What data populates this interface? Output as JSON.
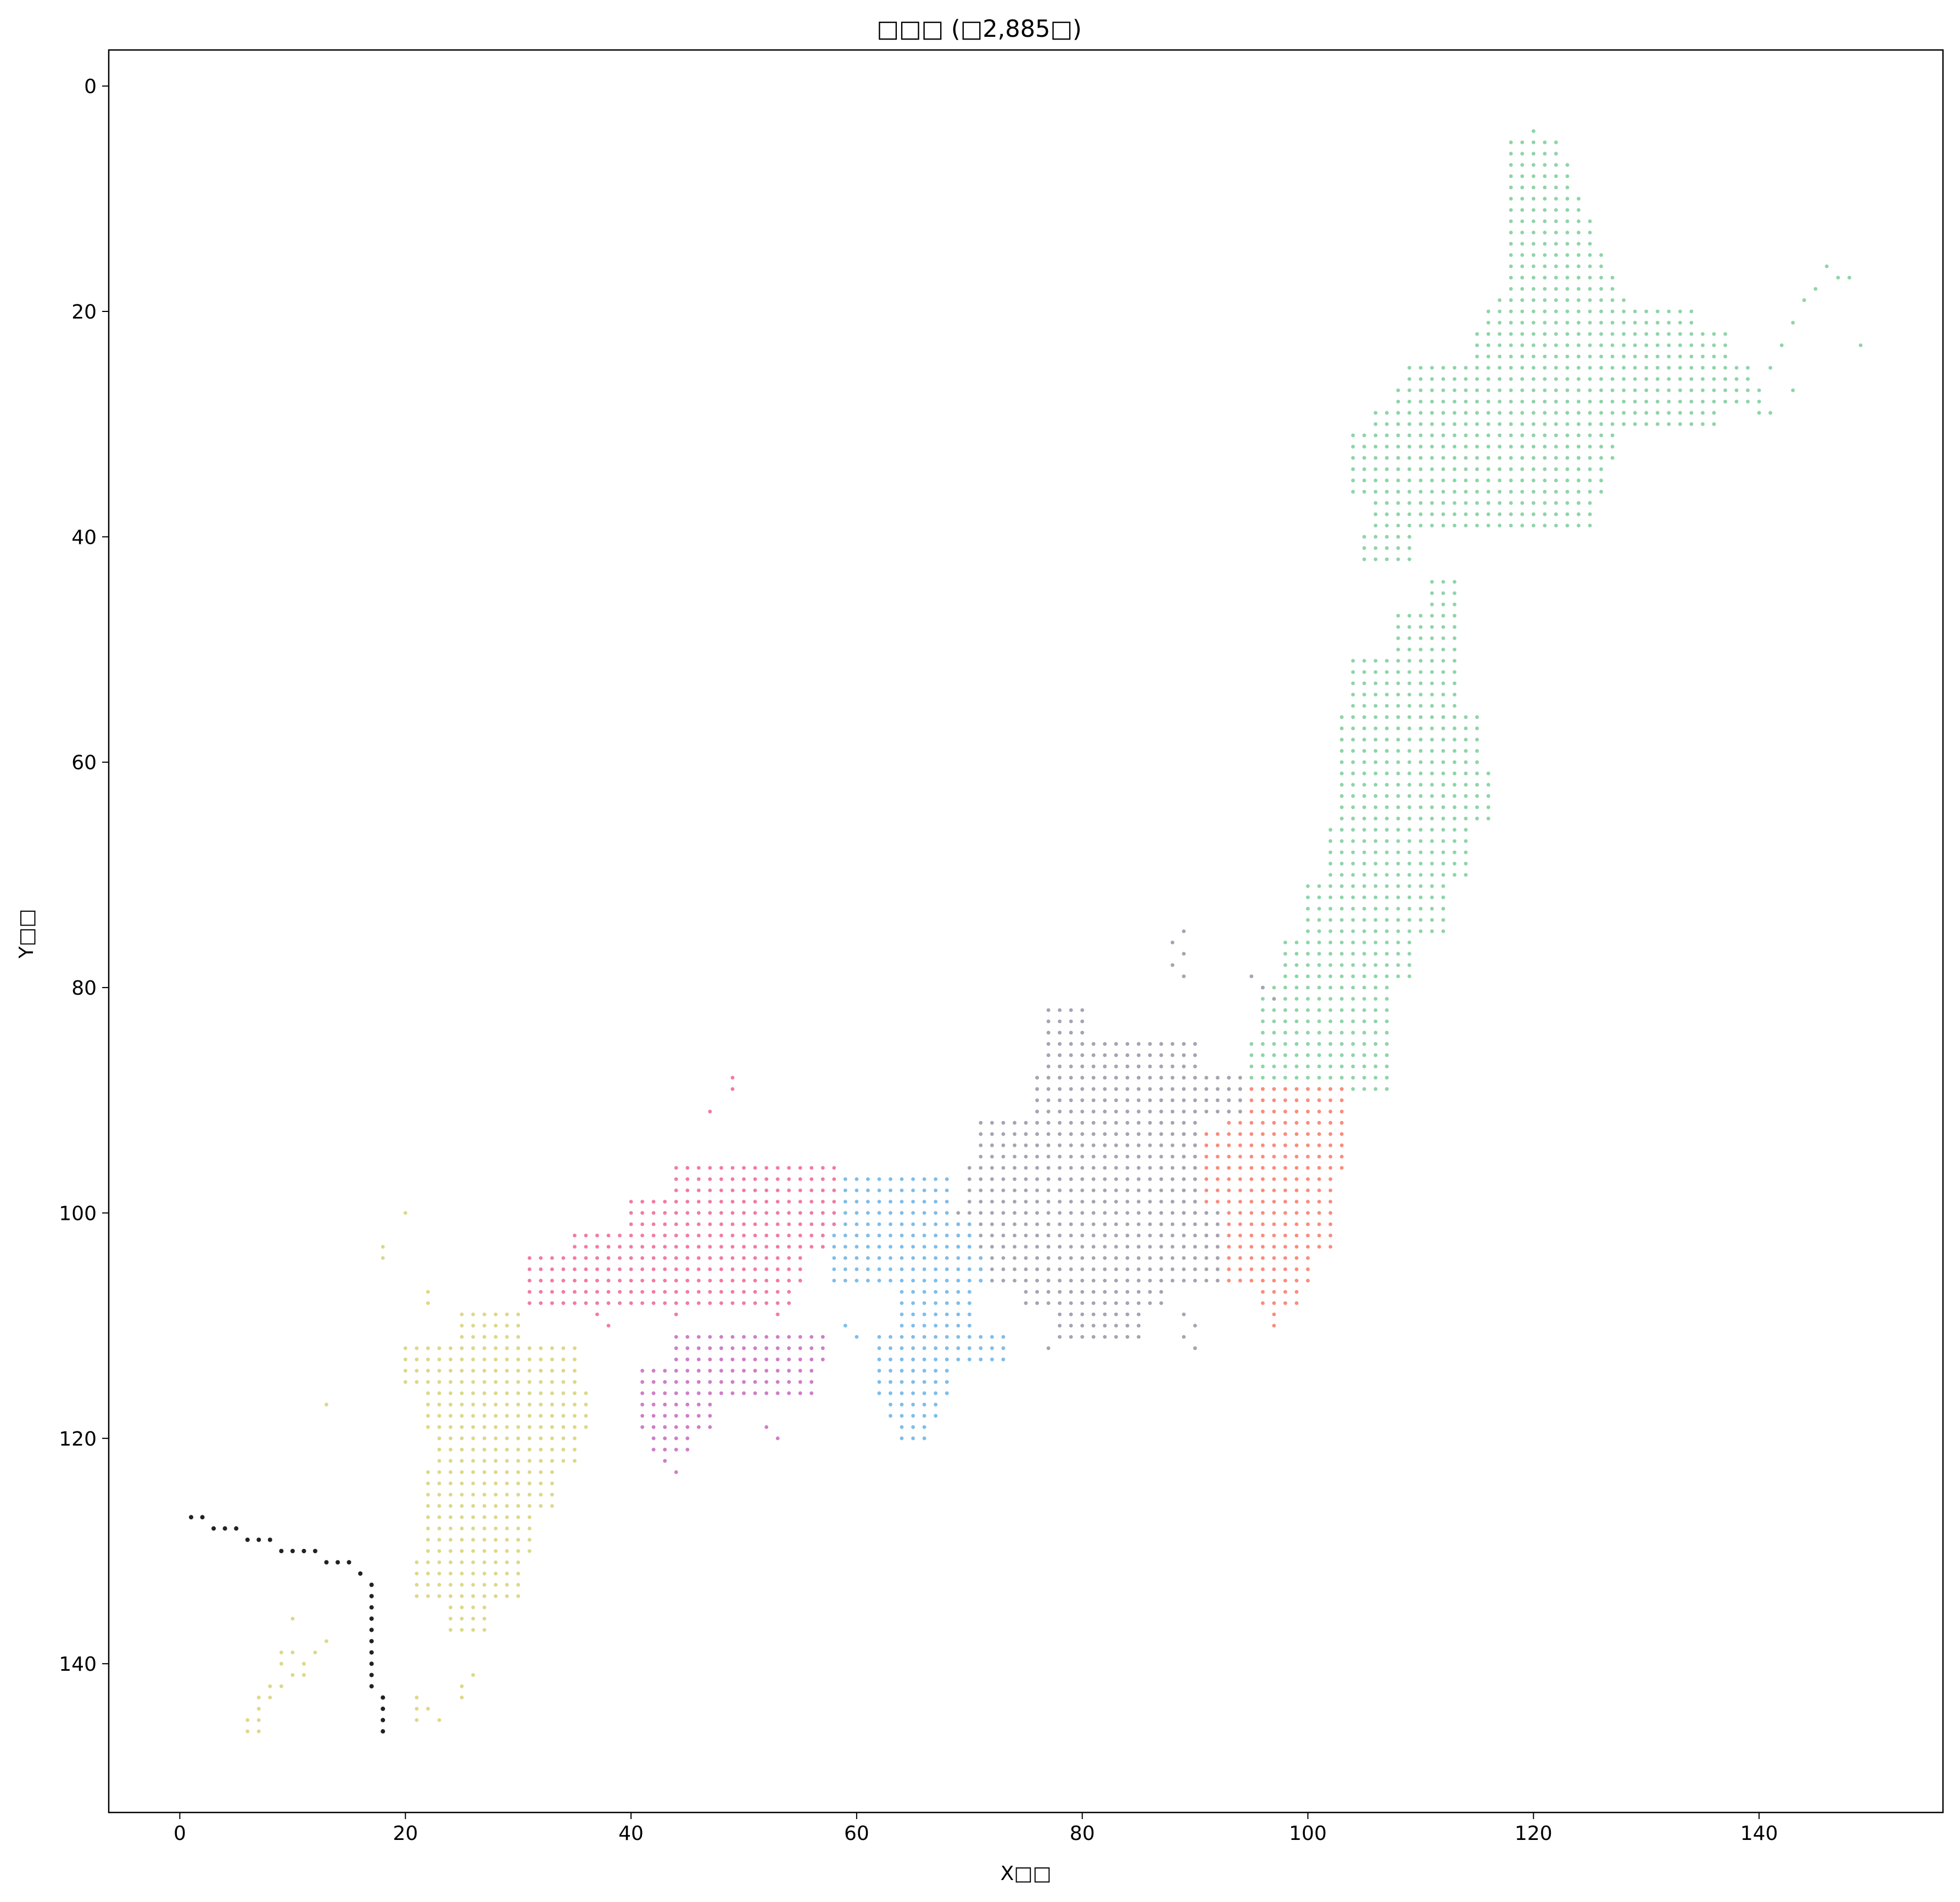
{
  "chart_data": {
    "type": "scatter",
    "title": "□□□ (□2,885□)",
    "xlabel": "X□□",
    "ylabel": "Y□□",
    "xlim": [
      -6.3,
      156.3
    ],
    "ylim": [
      153.2,
      -3.2
    ],
    "y_inverted": true,
    "xticks": [
      0,
      20,
      40,
      60,
      80,
      100,
      120,
      140
    ],
    "yticks": [
      0,
      20,
      40,
      60,
      80,
      100,
      120,
      140
    ],
    "grid": false,
    "legend": "none",
    "marker": "small dots on an integer grid",
    "colors": {
      "hokkaido_tohoku": "#8fd4a8",
      "kanto": "#fa8c7c",
      "chubu": "#a4a4b2",
      "kinki": "#7fbdea",
      "chugoku": "#f27ba4",
      "shikoku": "#cf7ec8",
      "kyushu": "#dcd88a",
      "boundary_line": "#222222"
    },
    "series": [
      {
        "color": "#8fd4a8",
        "regions": [
          {
            "y0": 4,
            "y1": 4,
            "x0": 120,
            "x1": 120
          },
          {
            "y0": 5,
            "y1": 6,
            "x0": 118,
            "x1": 122
          },
          {
            "y0": 7,
            "y1": 9,
            "x0": 118,
            "x1": 123
          },
          {
            "y0": 10,
            "y1": 11,
            "x0": 118,
            "x1": 124
          },
          {
            "y0": 12,
            "y1": 14,
            "x0": 118,
            "x1": 125
          },
          {
            "y0": 15,
            "y1": 16,
            "x0": 118,
            "x1": 126
          },
          {
            "y0": 17,
            "y1": 18,
            "x0": 118,
            "x1": 127
          },
          {
            "y0": 19,
            "y1": 19,
            "x0": 117,
            "x1": 128
          },
          {
            "y0": 20,
            "y1": 21,
            "x0": 116,
            "x1": 134
          },
          {
            "y0": 22,
            "y1": 24,
            "x0": 115,
            "x1": 137
          },
          {
            "y0": 25,
            "y1": 26,
            "x0": 109,
            "x1": 139
          },
          {
            "y0": 27,
            "y1": 28,
            "x0": 108,
            "x1": 140
          },
          {
            "y0": 29,
            "y1": 30,
            "x0": 106,
            "x1": 136
          },
          {
            "y0": 31,
            "y1": 33,
            "x0": 104,
            "x1": 127
          },
          {
            "y0": 34,
            "y1": 36,
            "x0": 104,
            "x1": 126
          },
          {
            "y0": 37,
            "y1": 39,
            "x0": 106,
            "x1": 125
          },
          {
            "y0": 40,
            "y1": 42,
            "x0": 105,
            "x1": 109
          },
          {
            "y0": 44,
            "y1": 46,
            "x0": 111,
            "x1": 113
          },
          {
            "y0": 47,
            "y1": 50,
            "x0": 108,
            "x1": 113
          },
          {
            "y0": 51,
            "y1": 55,
            "x0": 104,
            "x1": 113
          },
          {
            "y0": 56,
            "y1": 60,
            "x0": 103,
            "x1": 115
          },
          {
            "y0": 61,
            "y1": 65,
            "x0": 103,
            "x1": 116
          },
          {
            "y0": 66,
            "y1": 70,
            "x0": 102,
            "x1": 114
          },
          {
            "y0": 71,
            "y1": 75,
            "x0": 100,
            "x1": 112
          },
          {
            "y0": 76,
            "y1": 79,
            "x0": 98,
            "x1": 109
          },
          {
            "y0": 80,
            "y1": 84,
            "x0": 96,
            "x1": 107
          },
          {
            "y0": 85,
            "y1": 89,
            "x0": 95,
            "x1": 107
          }
        ],
        "extra_points": [
          [
            146,
            16
          ],
          [
            147,
            17
          ],
          [
            148,
            17
          ],
          [
            149,
            23
          ],
          [
            145,
            18
          ],
          [
            144,
            19
          ],
          [
            143,
            21
          ],
          [
            142,
            23
          ],
          [
            141,
            25
          ],
          [
            143,
            27
          ],
          [
            141,
            29
          ],
          [
            140,
            29
          ]
        ]
      },
      {
        "color": "#fa8c7c",
        "regions": [
          {
            "y0": 89,
            "y1": 92,
            "x0": 93,
            "x1": 103
          },
          {
            "y0": 93,
            "y1": 96,
            "x0": 89,
            "x1": 103
          },
          {
            "y0": 97,
            "y1": 100,
            "x0": 89,
            "x1": 102
          },
          {
            "y0": 101,
            "y1": 103,
            "x0": 91,
            "x1": 102
          },
          {
            "y0": 104,
            "y1": 106,
            "x0": 92,
            "x1": 100
          },
          {
            "y0": 107,
            "y1": 108,
            "x0": 96,
            "x1": 99
          }
        ],
        "extra_points": [
          [
            97,
            109
          ],
          [
            97,
            110
          ]
        ]
      },
      {
        "color": "#a4a4b2",
        "regions": [
          {
            "y0": 82,
            "y1": 84,
            "x0": 77,
            "x1": 80
          },
          {
            "y0": 85,
            "y1": 87,
            "x0": 77,
            "x1": 90
          },
          {
            "y0": 88,
            "y1": 91,
            "x0": 76,
            "x1": 94
          },
          {
            "y0": 92,
            "y1": 95,
            "x0": 71,
            "x1": 90
          },
          {
            "y0": 96,
            "y1": 99,
            "x0": 70,
            "x1": 90
          },
          {
            "y0": 100,
            "y1": 103,
            "x0": 69,
            "x1": 92
          },
          {
            "y0": 104,
            "y1": 106,
            "x0": 71,
            "x1": 92
          },
          {
            "y0": 107,
            "y1": 108,
            "x0": 75,
            "x1": 87
          },
          {
            "y0": 109,
            "y1": 111,
            "x0": 78,
            "x1": 85
          }
        ],
        "extra_points": [
          [
            89,
            75
          ],
          [
            88,
            76
          ],
          [
            89,
            77
          ],
          [
            88,
            78
          ],
          [
            89,
            79
          ],
          [
            95,
            79
          ],
          [
            96,
            80
          ],
          [
            97,
            81
          ],
          [
            89,
            109
          ],
          [
            90,
            110
          ],
          [
            89,
            111
          ],
          [
            90,
            112
          ],
          [
            77,
            112
          ]
        ]
      },
      {
        "color": "#7fbdea",
        "regions": [
          {
            "y0": 97,
            "y1": 100,
            "x0": 59,
            "x1": 68
          },
          {
            "y0": 101,
            "y1": 103,
            "x0": 57,
            "x1": 70
          },
          {
            "y0": 104,
            "y1": 106,
            "x0": 58,
            "x1": 71
          },
          {
            "y0": 107,
            "y1": 110,
            "x0": 64,
            "x1": 70
          },
          {
            "y0": 111,
            "y1": 113,
            "x0": 62,
            "x1": 73
          },
          {
            "y0": 114,
            "y1": 116,
            "x0": 62,
            "x1": 68
          },
          {
            "y0": 117,
            "y1": 118,
            "x0": 63,
            "x1": 67
          },
          {
            "y0": 119,
            "y1": 120,
            "x0": 64,
            "x1": 66
          }
        ],
        "extra_points": [
          [
            59,
            110
          ],
          [
            60,
            111
          ]
        ]
      },
      {
        "color": "#f27ba4",
        "regions": [
          {
            "y0": 96,
            "y1": 98,
            "x0": 44,
            "x1": 58
          },
          {
            "y0": 99,
            "y1": 101,
            "x0": 40,
            "x1": 58
          },
          {
            "y0": 102,
            "y1": 103,
            "x0": 35,
            "x1": 57
          },
          {
            "y0": 104,
            "y1": 106,
            "x0": 31,
            "x1": 55
          },
          {
            "y0": 107,
            "y1": 108,
            "x0": 31,
            "x1": 54
          }
        ],
        "extra_points": [
          [
            49,
            88
          ],
          [
            49,
            89
          ],
          [
            47,
            91
          ],
          [
            37,
            109
          ],
          [
            38,
            110
          ],
          [
            44,
            109
          ],
          [
            53,
            109
          ]
        ]
      },
      {
        "color": "#cf7ec8",
        "regions": [
          {
            "y0": 111,
            "y1": 113,
            "x0": 44,
            "x1": 57
          },
          {
            "y0": 114,
            "y1": 116,
            "x0": 41,
            "x1": 56
          },
          {
            "y0": 117,
            "y1": 119,
            "x0": 41,
            "x1": 47
          },
          {
            "y0": 120,
            "y1": 121,
            "x0": 42,
            "x1": 45
          }
        ],
        "extra_points": [
          [
            43,
            122
          ],
          [
            44,
            123
          ],
          [
            52,
            119
          ],
          [
            53,
            120
          ]
        ]
      },
      {
        "color": "#dcd88a",
        "regions": [
          {
            "y0": 109,
            "y1": 112,
            "x0": 25,
            "x1": 30
          },
          {
            "y0": 112,
            "y1": 115,
            "x0": 20,
            "x1": 35
          },
          {
            "y0": 116,
            "y1": 119,
            "x0": 22,
            "x1": 36
          },
          {
            "y0": 120,
            "y1": 122,
            "x0": 23,
            "x1": 35
          },
          {
            "y0": 123,
            "y1": 126,
            "x0": 22,
            "x1": 33
          },
          {
            "y0": 127,
            "y1": 130,
            "x0": 22,
            "x1": 31
          },
          {
            "y0": 131,
            "y1": 134,
            "x0": 21,
            "x1": 30
          },
          {
            "y0": 135,
            "y1": 137,
            "x0": 24,
            "x1": 27
          }
        ],
        "extra_points": [
          [
            20,
            100
          ],
          [
            18,
            103
          ],
          [
            18,
            104
          ],
          [
            22,
            107
          ],
          [
            22,
            108
          ],
          [
            13,
            117
          ],
          [
            10,
            136
          ],
          [
            9,
            139
          ],
          [
            10,
            139
          ],
          [
            11,
            140
          ],
          [
            12,
            139
          ],
          [
            13,
            138
          ],
          [
            9,
            140
          ],
          [
            10,
            141
          ],
          [
            11,
            141
          ],
          [
            8,
            142
          ],
          [
            9,
            142
          ],
          [
            7,
            143
          ],
          [
            8,
            143
          ],
          [
            7,
            144
          ],
          [
            6,
            145
          ],
          [
            7,
            145
          ],
          [
            6,
            146
          ],
          [
            7,
            146
          ],
          [
            21,
            143
          ],
          [
            21,
            144
          ],
          [
            22,
            144
          ],
          [
            21,
            145
          ],
          [
            26,
            141
          ],
          [
            25,
            142
          ],
          [
            25,
            143
          ],
          [
            23,
            145
          ]
        ]
      },
      {
        "color": "#222222",
        "points": [
          [
            1,
            127
          ],
          [
            2,
            127
          ],
          [
            3,
            128
          ],
          [
            4,
            128
          ],
          [
            5,
            128
          ],
          [
            6,
            129
          ],
          [
            7,
            129
          ],
          [
            8,
            129
          ],
          [
            9,
            130
          ],
          [
            10,
            130
          ],
          [
            11,
            130
          ],
          [
            12,
            130
          ],
          [
            13,
            131
          ],
          [
            14,
            131
          ],
          [
            15,
            131
          ],
          [
            16,
            132
          ],
          [
            17,
            133
          ],
          [
            17,
            134
          ],
          [
            17,
            135
          ],
          [
            17,
            136
          ],
          [
            17,
            137
          ],
          [
            17,
            138
          ],
          [
            17,
            139
          ],
          [
            17,
            140
          ],
          [
            17,
            141
          ],
          [
            17,
            142
          ],
          [
            18,
            143
          ],
          [
            18,
            144
          ],
          [
            18,
            145
          ],
          [
            18,
            146
          ]
        ]
      }
    ]
  }
}
